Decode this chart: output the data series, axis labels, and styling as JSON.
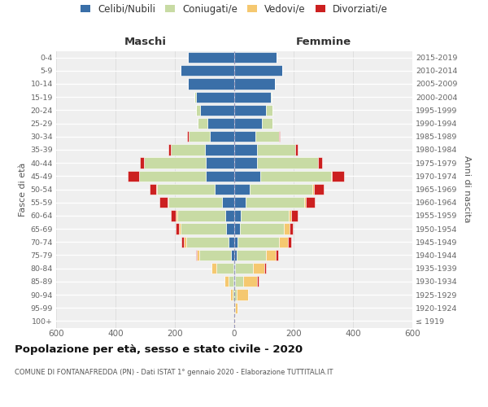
{
  "age_groups": [
    "100+",
    "95-99",
    "90-94",
    "85-89",
    "80-84",
    "75-79",
    "70-74",
    "65-69",
    "60-64",
    "55-59",
    "50-54",
    "45-49",
    "40-44",
    "35-39",
    "30-34",
    "25-29",
    "20-24",
    "15-19",
    "10-14",
    "5-9",
    "0-4"
  ],
  "birth_years": [
    "≤ 1919",
    "1920-1924",
    "1925-1929",
    "1930-1934",
    "1935-1939",
    "1940-1944",
    "1945-1949",
    "1950-1954",
    "1955-1959",
    "1960-1964",
    "1965-1969",
    "1970-1974",
    "1975-1979",
    "1980-1984",
    "1985-1989",
    "1990-1994",
    "1995-1999",
    "2000-2004",
    "2005-2009",
    "2010-2014",
    "2015-2019"
  ],
  "colors": {
    "celibi": "#3a6fa8",
    "coniugati": "#c8dba4",
    "vedovi": "#f5c870",
    "divorziati": "#cc2020"
  },
  "males": {
    "celibi": [
      0,
      0,
      0,
      2,
      4,
      10,
      20,
      28,
      30,
      42,
      65,
      95,
      95,
      100,
      82,
      90,
      115,
      130,
      155,
      180,
      155
    ],
    "coniugati": [
      0,
      1,
      5,
      18,
      55,
      108,
      142,
      152,
      162,
      180,
      195,
      225,
      210,
      115,
      72,
      33,
      14,
      4,
      0,
      0,
      0
    ],
    "vedovi": [
      0,
      1,
      10,
      14,
      18,
      8,
      8,
      7,
      4,
      3,
      2,
      0,
      0,
      0,
      0,
      0,
      0,
      0,
      0,
      0,
      0
    ],
    "divorziati": [
      0,
      0,
      0,
      0,
      0,
      4,
      8,
      10,
      18,
      28,
      22,
      38,
      12,
      8,
      4,
      0,
      0,
      0,
      0,
      0,
      0
    ]
  },
  "females": {
    "celibi": [
      0,
      0,
      0,
      2,
      2,
      8,
      12,
      18,
      22,
      38,
      52,
      88,
      78,
      78,
      72,
      92,
      108,
      122,
      138,
      162,
      142
    ],
    "coniugati": [
      0,
      2,
      8,
      28,
      62,
      100,
      140,
      150,
      162,
      198,
      212,
      238,
      205,
      128,
      78,
      38,
      22,
      4,
      0,
      0,
      0
    ],
    "vedovi": [
      2,
      8,
      38,
      48,
      38,
      32,
      28,
      18,
      8,
      4,
      4,
      2,
      0,
      0,
      0,
      0,
      0,
      0,
      0,
      0,
      0
    ],
    "divorziati": [
      0,
      0,
      0,
      4,
      4,
      8,
      12,
      12,
      22,
      32,
      32,
      42,
      12,
      8,
      4,
      0,
      0,
      0,
      0,
      0,
      0
    ]
  },
  "xlim": 600,
  "title": "Popolazione per età, sesso e stato civile - 2020",
  "subtitle": "COMUNE DI FONTANAFREDDA (PN) - Dati ISTAT 1° gennaio 2020 - Elaborazione TUTTITALIA.IT",
  "ylabel_left": "Fasce di età",
  "ylabel_right": "Anni di nascita",
  "xlabel_males": "Maschi",
  "xlabel_females": "Femmine",
  "legend_labels": [
    "Celibi/Nubili",
    "Coniugati/e",
    "Vedovi/e",
    "Divorziati/e"
  ],
  "bg_color": "#efefef",
  "grid_color": "#dddddd",
  "bar_linewidth": 0.4,
  "bar_edge_color": "white"
}
